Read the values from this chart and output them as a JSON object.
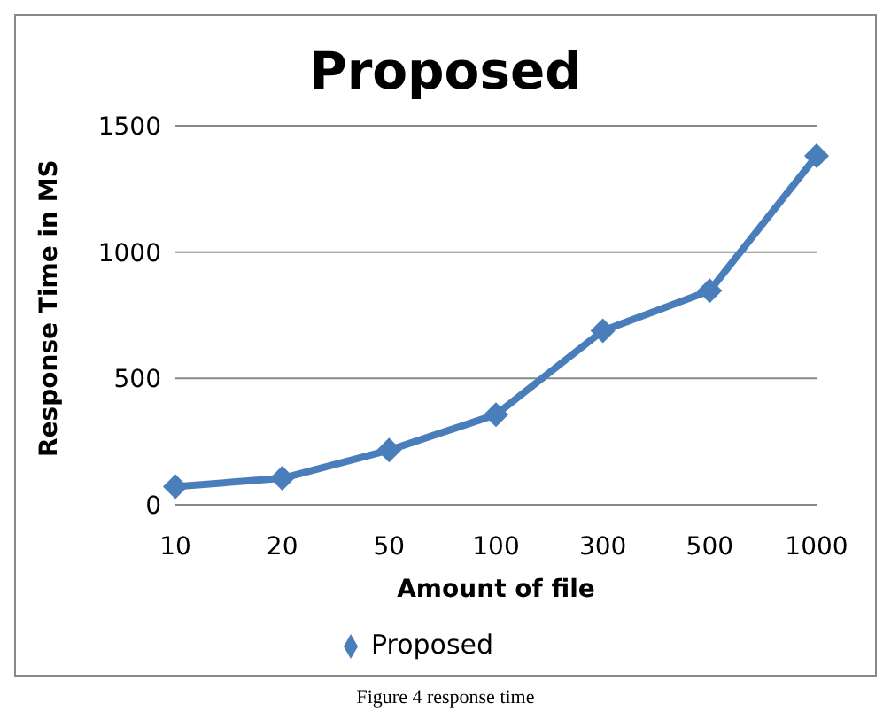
{
  "chart_data": {
    "type": "line",
    "title": "Proposed",
    "xlabel": "Amount of file",
    "ylabel": "Response Time in MS",
    "categories": [
      "10",
      "20",
      "50",
      "100",
      "300",
      "500",
      "1000"
    ],
    "series": [
      {
        "name": "Proposed",
        "color": "#4a7ebb",
        "values": [
          72,
          105,
          216,
          357,
          689,
          847,
          1381
        ]
      }
    ],
    "ylim": [
      0,
      1500
    ],
    "yticks": [
      0,
      500,
      1000,
      1500
    ],
    "grid": "y",
    "legend": "bottom",
    "marker": "diamond",
    "line_style": "solid",
    "annotations": [
      "Figure 4 response time"
    ]
  }
}
